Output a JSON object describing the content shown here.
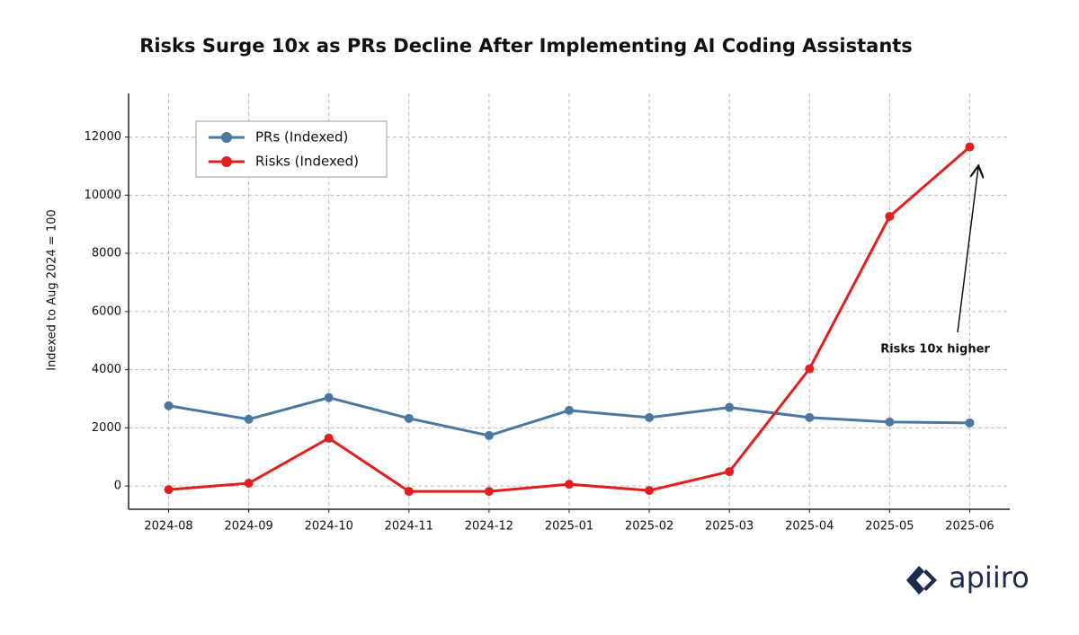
{
  "chart_data": {
    "type": "line",
    "title": "Risks Surge 10x as PRs Decline After Implementing AI Coding Assistants",
    "y_label": "Indexed to Aug 2024 = 100",
    "categories": [
      "2024-08",
      "2024-09",
      "2024-10",
      "2024-11",
      "2024-12",
      "2025-01",
      "2025-02",
      "2025-03",
      "2025-04",
      "2025-05",
      "2025-06"
    ],
    "series": [
      {
        "name": "PRs (Indexed)",
        "color": "#4a78a0",
        "values": [
          2760,
          2295,
          3040,
          2325,
          1735,
          2600,
          2355,
          2700,
          2355,
          2200,
          2170
        ]
      },
      {
        "name": "Risks (Indexed)",
        "color": "#e41d1d",
        "values": [
          -125,
          95,
          1645,
          -185,
          -185,
          60,
          -155,
          495,
          4030,
          9270,
          11660
        ]
      }
    ],
    "ylim": [
      -800,
      13500
    ],
    "yticks": [
      0,
      2000,
      4000,
      6000,
      8000,
      10000,
      12000
    ],
    "grid": true,
    "legend": "upper left",
    "annotation": "Risks 10x higher",
    "logo": "apiiro"
  }
}
